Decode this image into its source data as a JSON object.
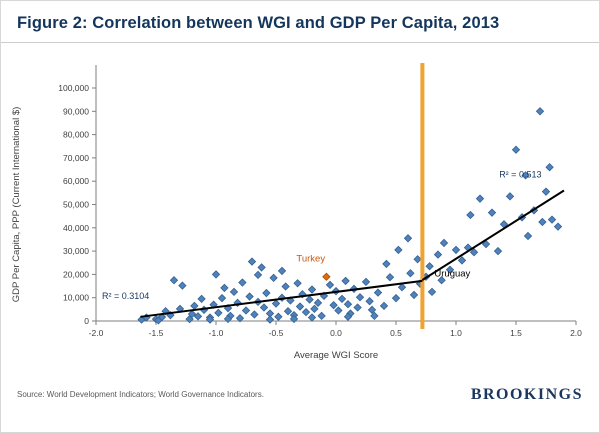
{
  "header": {
    "title": "Figure 2: Correlation between WGI and GDP Per Capita, 2013"
  },
  "footer": {
    "source": "Source: World Development Indicators; World Governance Indicators.",
    "logo": "BROOKINGS"
  },
  "chart_data": {
    "type": "scatter",
    "title": "Figure 2: Correlation between WGI and GDP Per Capita, 2013",
    "xlabel": "Average WGI Score",
    "ylabel": "GDP Per Capita, PPP (Current International $)",
    "xlim": [
      -2,
      2
    ],
    "ylim": [
      0,
      100000
    ],
    "x_ticks": [
      -2,
      -1.5,
      -1,
      -0.5,
      0,
      0.5,
      1,
      1.5,
      2
    ],
    "y_ticks": [
      0,
      10000,
      20000,
      30000,
      40000,
      50000,
      60000,
      70000,
      80000,
      90000,
      100000
    ],
    "grid": false,
    "legend": "none",
    "colors": {
      "point": "#4f81bd",
      "point_stroke": "#35618f",
      "trend": "#000000",
      "vline": "#f0a330",
      "highlight": "#e36c0a",
      "axis": "#7f7f7f",
      "tick_text": "#404040"
    },
    "points": [
      [
        -1.62,
        600
      ],
      [
        -1.58,
        1500
      ],
      [
        -1.5,
        800
      ],
      [
        -1.48,
        300
      ],
      [
        -1.45,
        1700
      ],
      [
        -1.42,
        4200
      ],
      [
        -1.38,
        2500
      ],
      [
        -1.35,
        17500
      ],
      [
        -1.3,
        5200
      ],
      [
        -1.28,
        15200
      ],
      [
        -1.22,
        800
      ],
      [
        -1.2,
        3000
      ],
      [
        -1.18,
        6500
      ],
      [
        -1.15,
        2000
      ],
      [
        -1.12,
        9500
      ],
      [
        -1.1,
        4800
      ],
      [
        -1.05,
        1500
      ],
      [
        -1.02,
        7000
      ],
      [
        -1.0,
        20000
      ],
      [
        -0.98,
        3500
      ],
      [
        -0.95,
        9800
      ],
      [
        -0.93,
        14200
      ],
      [
        -0.9,
        5500
      ],
      [
        -0.88,
        2200
      ],
      [
        -0.85,
        12500
      ],
      [
        -0.82,
        7800
      ],
      [
        -0.8,
        1200
      ],
      [
        -0.78,
        16500
      ],
      [
        -0.75,
        4500
      ],
      [
        -0.72,
        10500
      ],
      [
        -0.7,
        25500
      ],
      [
        -0.68,
        2800
      ],
      [
        -0.65,
        8200
      ],
      [
        -0.62,
        23000
      ],
      [
        -0.6,
        5800
      ],
      [
        -0.58,
        12000
      ],
      [
        -0.55,
        3200
      ],
      [
        -0.52,
        18500
      ],
      [
        -0.5,
        7500
      ],
      [
        -0.48,
        1800
      ],
      [
        -0.45,
        10000
      ],
      [
        -0.42,
        14800
      ],
      [
        -0.4,
        4200
      ],
      [
        -0.38,
        8800
      ],
      [
        -0.35,
        2500
      ],
      [
        -0.32,
        16200
      ],
      [
        -0.3,
        6200
      ],
      [
        -0.28,
        11500
      ],
      [
        -0.25,
        3800
      ],
      [
        -0.22,
        9200
      ],
      [
        -0.2,
        13500
      ],
      [
        -0.18,
        5200
      ],
      [
        -0.15,
        7800
      ],
      [
        -0.12,
        2200
      ],
      [
        -0.1,
        10800
      ],
      [
        -0.05,
        15500
      ],
      [
        -0.02,
        6800
      ],
      [
        0.0,
        12800
      ],
      [
        0.02,
        4500
      ],
      [
        0.05,
        9500
      ],
      [
        0.08,
        17200
      ],
      [
        0.1,
        7200
      ],
      [
        0.12,
        3200
      ],
      [
        0.15,
        13800
      ],
      [
        0.18,
        5800
      ],
      [
        0.2,
        10200
      ],
      [
        0.25,
        16800
      ],
      [
        0.28,
        8500
      ],
      [
        0.3,
        4800
      ],
      [
        0.35,
        12200
      ],
      [
        0.4,
        6500
      ],
      [
        0.45,
        18800
      ],
      [
        0.5,
        9800
      ],
      [
        0.55,
        14500
      ],
      [
        0.6,
        35500
      ],
      [
        0.62,
        20500
      ],
      [
        0.65,
        11200
      ],
      [
        0.68,
        26500
      ],
      [
        0.7,
        16000
      ],
      [
        0.75,
        19000
      ],
      [
        0.78,
        23500
      ],
      [
        0.8,
        12500
      ],
      [
        0.85,
        28500
      ],
      [
        0.88,
        17500
      ],
      [
        0.9,
        33500
      ],
      [
        0.95,
        22000
      ],
      [
        1.0,
        30500
      ],
      [
        1.05,
        26000
      ],
      [
        1.1,
        31500
      ],
      [
        1.12,
        45500
      ],
      [
        1.15,
        29500
      ],
      [
        1.2,
        52500
      ],
      [
        1.25,
        33000
      ],
      [
        1.3,
        46500
      ],
      [
        1.35,
        30000
      ],
      [
        1.4,
        41500
      ],
      [
        1.45,
        53500
      ],
      [
        1.5,
        73500
      ],
      [
        1.55,
        44500
      ],
      [
        1.58,
        62500
      ],
      [
        1.6,
        36500
      ],
      [
        1.65,
        47500
      ],
      [
        1.7,
        90000
      ],
      [
        1.72,
        42500
      ],
      [
        1.75,
        55500
      ],
      [
        1.78,
        66000
      ],
      [
        1.8,
        43500
      ],
      [
        1.85,
        40500
      ],
      [
        -1.05,
        600
      ],
      [
        -0.9,
        900
      ],
      [
        -0.55,
        600
      ],
      [
        -0.35,
        900
      ],
      [
        -0.2,
        1500
      ],
      [
        0.1,
        1800
      ],
      [
        0.32,
        2200
      ],
      [
        -0.65,
        19800
      ],
      [
        -0.45,
        21500
      ],
      [
        0.42,
        24500
      ],
      [
        0.52,
        30500
      ]
    ],
    "highlight_point": {
      "x": -0.08,
      "y": 19000,
      "label": "Turkey"
    },
    "trend_segments": [
      {
        "x1": -1.63,
        "y1": 1800,
        "x2": 0.72,
        "y2": 17200
      },
      {
        "x1": 0.72,
        "y1": 17600,
        "x2": 1.9,
        "y2": 56000
      }
    ],
    "vline": {
      "x": 0.72
    },
    "annotations": [
      {
        "text": "R² = 0.3104",
        "x": -1.95,
        "y": 9500,
        "color": "#17365c",
        "anchor": "start",
        "size": 9
      },
      {
        "text": "R² = 0.513",
        "x": 1.36,
        "y": 61500,
        "color": "#17365c",
        "anchor": "start",
        "size": 9
      },
      {
        "text": "Turkey",
        "x": -0.33,
        "y": 25500,
        "color": "#c55a11",
        "anchor": "start",
        "size": 9.5
      },
      {
        "text": "Uruguay",
        "x": 0.82,
        "y": 19200,
        "color": "#000000",
        "anchor": "start",
        "size": 9.5
      }
    ]
  }
}
